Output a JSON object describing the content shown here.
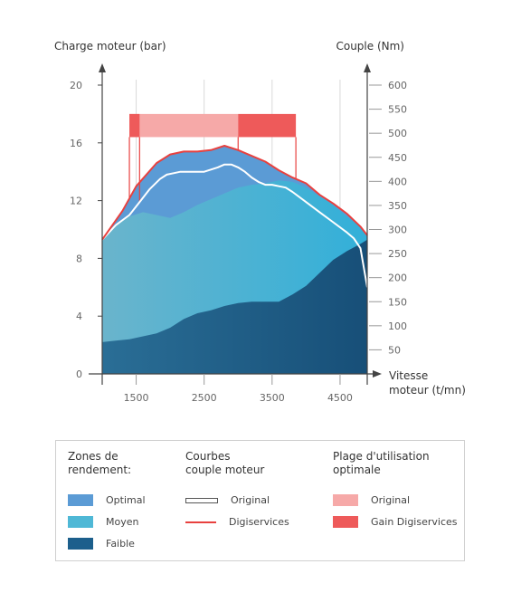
{
  "chart_data": {
    "type": "area",
    "left_axis_title": "Charge moteur (bar)",
    "right_axis_title": "Couple (Nm)",
    "x_axis_title": [
      "Vitesse",
      "moteur (t/mn)"
    ],
    "xlim": [
      1000,
      4900
    ],
    "ylim": [
      0,
      20
    ],
    "y2lim": [
      0,
      600
    ],
    "x_ticks": [
      1500,
      2500,
      3500,
      4500
    ],
    "y_ticks": [
      0,
      4,
      8,
      12,
      16,
      20
    ],
    "y2_ticks": [
      50,
      100,
      150,
      200,
      250,
      300,
      350,
      400,
      450,
      500,
      550,
      600
    ],
    "zones": [
      {
        "name": "Optimal",
        "color": "#5b9bd5",
        "x": [
          1000,
          1300,
          1500,
          1800,
          2000,
          2200,
          2400,
          2600,
          2800,
          3000,
          3200,
          3400,
          3600,
          3800,
          4000,
          4200,
          4400,
          4600,
          4800,
          4900
        ],
        "y": [
          9.3,
          11.3,
          13.0,
          14.6,
          15.2,
          15.4,
          15.4,
          15.5,
          15.8,
          15.5,
          15.1,
          14.7,
          14.1,
          13.6,
          13.2,
          12.4,
          11.8,
          11.1,
          10.2,
          9.6
        ]
      },
      {
        "name": "Moyen",
        "color": "#4fb8d6",
        "x": [
          1000,
          1200,
          1400,
          1600,
          1800,
          2000,
          2200,
          2400,
          2600,
          2800,
          3000,
          3200,
          3400,
          3600,
          3800,
          4000,
          4200,
          4400,
          4600,
          4800,
          4900
        ],
        "y": [
          9.3,
          10.3,
          10.9,
          11.2,
          11.0,
          10.8,
          11.2,
          11.7,
          12.1,
          12.5,
          12.9,
          13.1,
          13.2,
          13.4,
          13.3,
          12.9,
          12.3,
          11.7,
          10.9,
          10.2,
          9.6
        ]
      },
      {
        "name": "Faible",
        "color": "#1c5f8c",
        "x": [
          1000,
          1200,
          1400,
          1600,
          1800,
          2000,
          2200,
          2400,
          2600,
          2800,
          3000,
          3200,
          3400,
          3600,
          3800,
          4000,
          4200,
          4400,
          4600,
          4800,
          4900
        ],
        "y": [
          2.2,
          2.3,
          2.4,
          2.6,
          2.8,
          3.2,
          3.8,
          4.2,
          4.4,
          4.7,
          4.9,
          5.0,
          5.0,
          5.0,
          5.5,
          6.1,
          7.0,
          7.9,
          8.5,
          9.0,
          9.3
        ]
      }
    ],
    "curves": [
      {
        "name": "Original",
        "color": "#ffffff",
        "x": [
          1000,
          1200,
          1400,
          1550,
          1700,
          1850,
          1950,
          2050,
          2150,
          2300,
          2500,
          2700,
          2800,
          2900,
          3000,
          3100,
          3200,
          3300,
          3400,
          3500,
          3600,
          3700,
          3800,
          4000,
          4200,
          4400,
          4600,
          4700,
          4800,
          4900
        ],
        "y": [
          9.3,
          10.3,
          11.0,
          11.9,
          12.8,
          13.5,
          13.8,
          13.9,
          14.0,
          14.0,
          14.0,
          14.3,
          14.5,
          14.5,
          14.3,
          14.0,
          13.6,
          13.3,
          13.1,
          13.1,
          13.0,
          12.9,
          12.6,
          11.9,
          11.2,
          10.5,
          9.8,
          9.4,
          8.7,
          6.0
        ]
      },
      {
        "name": "Digiservices",
        "color": "#e8413f",
        "x": [
          1000,
          1300,
          1500,
          1800,
          2000,
          2200,
          2400,
          2600,
          2800,
          3000,
          3200,
          3400,
          3600,
          3800,
          4000,
          4200,
          4400,
          4600,
          4800,
          4900
        ],
        "y": [
          9.3,
          11.3,
          13.0,
          14.6,
          15.2,
          15.4,
          15.4,
          15.5,
          15.8,
          15.5,
          15.1,
          14.7,
          14.1,
          13.6,
          13.2,
          12.4,
          11.8,
          11.1,
          10.2,
          9.6
        ]
      }
    ],
    "ranges": [
      {
        "name": "Original",
        "color": "#f6a9a8",
        "x_start": 1400,
        "x_end": 3000,
        "y_low": 16.4,
        "y_high": 18.0
      },
      {
        "name": "Gain Digiservices",
        "color": "#ee5a5a",
        "x_start": 1400,
        "x_end": 1550,
        "y_low": 16.4,
        "y_high": 18.0
      },
      {
        "name": "Gain Digiservices",
        "color": "#ee5a5a",
        "x_start": 3000,
        "x_end": 3850,
        "y_low": 16.4,
        "y_high": 18.0
      }
    ],
    "grid": true
  },
  "legend": {
    "zones_title": "Zones de\nrendement:",
    "curves_title": "Courbes\ncouple moteur",
    "range_title": "Plage d'utilisation\noptimale",
    "zones": [
      "Optimal",
      "Moyen",
      "Faible"
    ],
    "curves": [
      "Original",
      "Digiservices"
    ],
    "ranges": [
      "Original",
      "Gain Digiservices"
    ],
    "colors": {
      "optimal": "#5b9bd5",
      "moyen": "#4fb8d6",
      "faible": "#1c5f8c",
      "curve_original": "#ffffff",
      "curve_digi": "#e8413f",
      "range_original": "#f6a9a8",
      "range_gain": "#ee5a5a"
    }
  }
}
